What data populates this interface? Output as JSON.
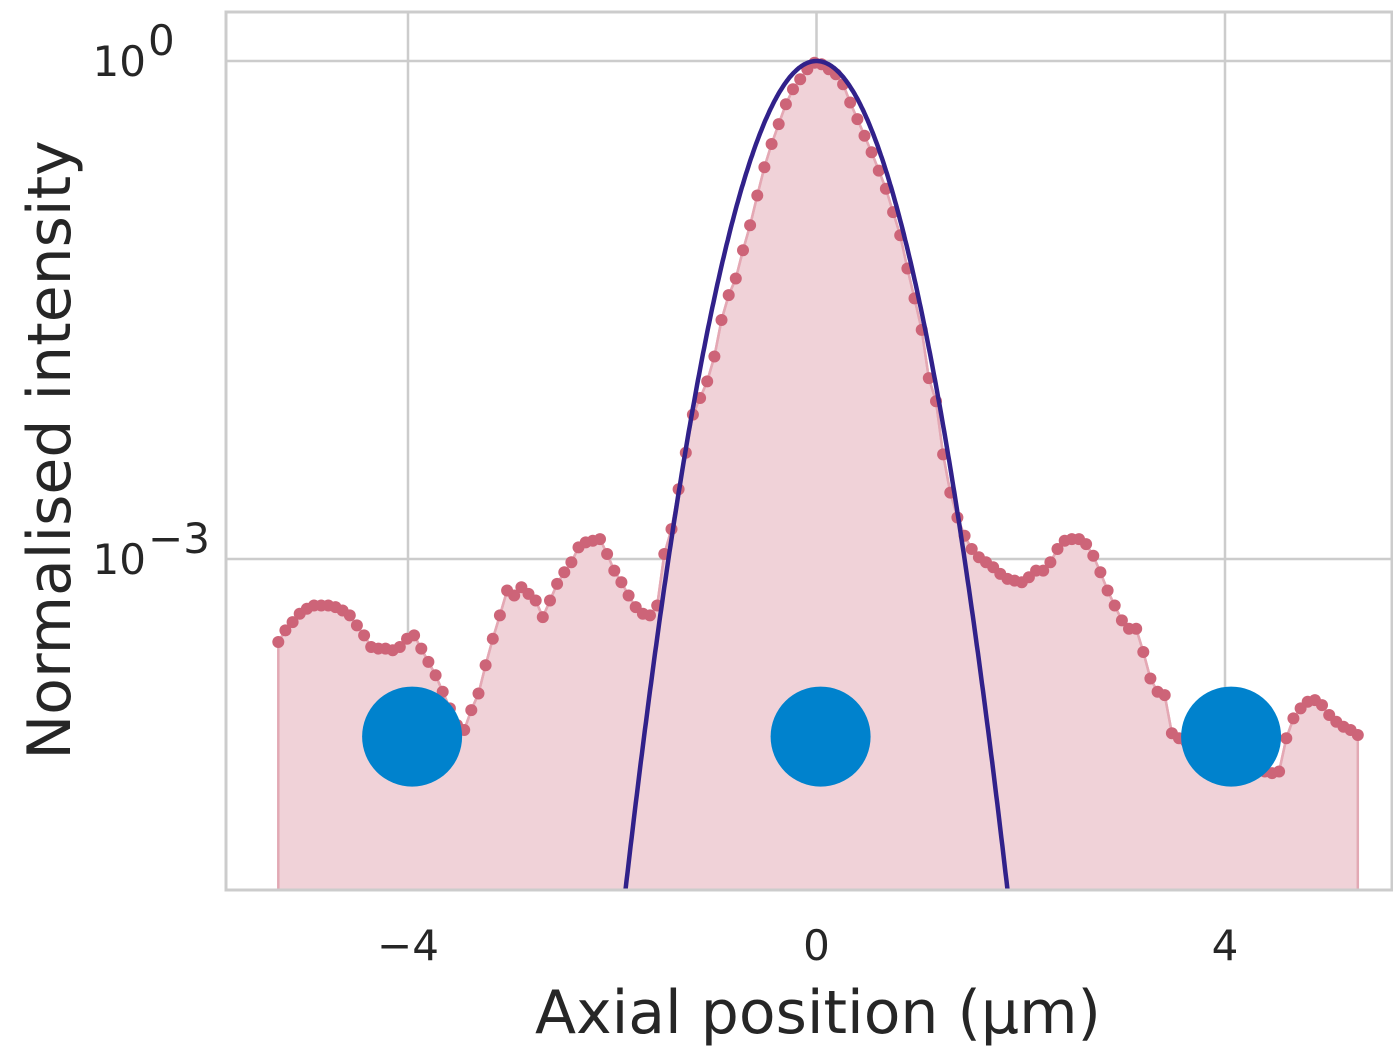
{
  "chart_data": {
    "type": "scatter",
    "title": "",
    "xlabel": "Axial position (µm)",
    "ylabel": "Normalised intensity",
    "xlim": [
      -5.9,
      5.6
    ],
    "ylim_log10": [
      -5.0,
      0.3
    ],
    "y_scale": "log",
    "grid": true,
    "x_ticks": [
      {
        "value": -4,
        "label": "−4"
      },
      {
        "value": 0,
        "label": "0"
      },
      {
        "value": 4,
        "label": "4"
      }
    ],
    "y_ticks": [
      {
        "log10": 0,
        "base": "10",
        "exp": "0"
      },
      {
        "log10": -3,
        "base": "10",
        "exp": "−3"
      }
    ],
    "colors": {
      "measured_points": "#cd6478",
      "measured_fill": "#f0d2d8",
      "fit_line": "#31218a",
      "markers": "#0082cd",
      "grid": "#cccccc",
      "text": "#262626"
    },
    "series": [
      {
        "kind": "measured",
        "log10_y": [
          [
            -5.27,
            -3.5
          ],
          [
            -5.2,
            -3.43
          ],
          [
            -5.13,
            -3.38
          ],
          [
            -5.06,
            -3.33
          ],
          [
            -4.99,
            -3.3
          ],
          [
            -4.92,
            -3.28
          ],
          [
            -4.85,
            -3.28
          ],
          [
            -4.78,
            -3.28
          ],
          [
            -4.71,
            -3.29
          ],
          [
            -4.64,
            -3.31
          ],
          [
            -4.57,
            -3.34
          ],
          [
            -4.5,
            -3.4
          ],
          [
            -4.43,
            -3.46
          ],
          [
            -4.36,
            -3.53
          ],
          [
            -4.29,
            -3.54
          ],
          [
            -4.22,
            -3.54
          ],
          [
            -4.15,
            -3.55
          ],
          [
            -4.08,
            -3.53
          ],
          [
            -4.01,
            -3.48
          ],
          [
            -3.94,
            -3.46
          ],
          [
            -3.87,
            -3.54
          ],
          [
            -3.8,
            -3.62
          ],
          [
            -3.73,
            -3.7
          ],
          [
            -3.66,
            -3.8
          ],
          [
            -3.59,
            -3.9
          ],
          [
            -3.52,
            -4.0
          ],
          [
            -3.45,
            -4.03
          ],
          [
            -3.38,
            -3.91
          ],
          [
            -3.31,
            -3.81
          ],
          [
            -3.24,
            -3.64
          ],
          [
            -3.17,
            -3.48
          ],
          [
            -3.1,
            -3.34
          ],
          [
            -3.03,
            -3.19
          ],
          [
            -2.96,
            -3.22
          ],
          [
            -2.89,
            -3.17
          ],
          [
            -2.82,
            -3.21
          ],
          [
            -2.75,
            -3.25
          ],
          [
            -2.68,
            -3.35
          ],
          [
            -2.61,
            -3.25
          ],
          [
            -2.54,
            -3.15
          ],
          [
            -2.47,
            -3.08
          ],
          [
            -2.4,
            -3.02
          ],
          [
            -2.33,
            -2.93
          ],
          [
            -2.26,
            -2.9
          ],
          [
            -2.19,
            -2.89
          ],
          [
            -2.12,
            -2.88
          ],
          [
            -2.05,
            -2.97
          ],
          [
            -1.98,
            -3.07
          ],
          [
            -1.91,
            -3.14
          ],
          [
            -1.84,
            -3.22
          ],
          [
            -1.77,
            -3.29
          ],
          [
            -1.7,
            -3.33
          ],
          [
            -1.63,
            -3.34
          ],
          [
            -1.56,
            -3.28
          ],
          [
            -1.49,
            -2.97
          ],
          [
            -1.42,
            -2.82
          ],
          [
            -1.35,
            -2.58
          ],
          [
            -1.28,
            -2.36
          ],
          [
            -1.21,
            -2.13
          ],
          [
            -1.14,
            -2.03
          ],
          [
            -1.07,
            -1.93
          ],
          [
            -1.0,
            -1.78
          ],
          [
            -0.93,
            -1.56
          ],
          [
            -0.86,
            -1.41
          ],
          [
            -0.79,
            -1.31
          ],
          [
            -0.72,
            -1.14
          ],
          [
            -0.65,
            -0.99
          ],
          [
            -0.58,
            -0.81
          ],
          [
            -0.51,
            -0.64
          ],
          [
            -0.44,
            -0.5
          ],
          [
            -0.37,
            -0.38
          ],
          [
            -0.3,
            -0.26
          ],
          [
            -0.23,
            -0.17
          ],
          [
            -0.16,
            -0.11
          ],
          [
            -0.09,
            -0.05
          ],
          [
            -0.02,
            -0.01
          ],
          [
            0.05,
            -0.02
          ],
          [
            0.12,
            -0.05
          ],
          [
            0.19,
            -0.08
          ],
          [
            0.26,
            -0.14
          ],
          [
            0.33,
            -0.25
          ],
          [
            0.4,
            -0.35
          ],
          [
            0.47,
            -0.45
          ],
          [
            0.54,
            -0.55
          ],
          [
            0.61,
            -0.66
          ],
          [
            0.68,
            -0.77
          ],
          [
            0.75,
            -0.91
          ],
          [
            0.82,
            -1.05
          ],
          [
            0.89,
            -1.25
          ],
          [
            0.96,
            -1.43
          ],
          [
            1.03,
            -1.62
          ],
          [
            1.1,
            -1.91
          ],
          [
            1.17,
            -2.05
          ],
          [
            1.24,
            -2.37
          ],
          [
            1.31,
            -2.6
          ],
          [
            1.38,
            -2.75
          ],
          [
            1.45,
            -2.86
          ],
          [
            1.52,
            -2.94
          ],
          [
            1.59,
            -2.99
          ],
          [
            1.66,
            -3.02
          ],
          [
            1.73,
            -3.05
          ],
          [
            1.8,
            -3.09
          ],
          [
            1.87,
            -3.12
          ],
          [
            1.94,
            -3.13
          ],
          [
            2.01,
            -3.14
          ],
          [
            2.08,
            -3.11
          ],
          [
            2.15,
            -3.07
          ],
          [
            2.22,
            -3.07
          ],
          [
            2.29,
            -3.02
          ],
          [
            2.36,
            -2.94
          ],
          [
            2.43,
            -2.89
          ],
          [
            2.5,
            -2.88
          ],
          [
            2.57,
            -2.88
          ],
          [
            2.64,
            -2.91
          ],
          [
            2.71,
            -2.98
          ],
          [
            2.78,
            -3.08
          ],
          [
            2.85,
            -3.19
          ],
          [
            2.92,
            -3.28
          ],
          [
            2.99,
            -3.37
          ],
          [
            3.06,
            -3.42
          ],
          [
            3.13,
            -3.42
          ],
          [
            3.2,
            -3.56
          ],
          [
            3.27,
            -3.72
          ],
          [
            3.34,
            -3.8
          ],
          [
            3.41,
            -3.82
          ],
          [
            3.48,
            -4.05
          ],
          [
            3.55,
            -4.08
          ],
          [
            3.62,
            -4.1
          ],
          [
            3.69,
            -4.11
          ],
          [
            3.76,
            -4.12
          ],
          [
            3.83,
            -4.12
          ],
          [
            3.9,
            -4.13
          ],
          [
            3.97,
            -4.15
          ],
          [
            4.04,
            -4.17
          ],
          [
            4.11,
            -4.2
          ],
          [
            4.18,
            -4.23
          ],
          [
            4.25,
            -4.25
          ],
          [
            4.32,
            -4.26
          ],
          [
            4.39,
            -4.28
          ],
          [
            4.46,
            -4.29
          ],
          [
            4.53,
            -4.28
          ],
          [
            4.6,
            -4.08
          ],
          [
            4.67,
            -3.96
          ],
          [
            4.74,
            -3.9
          ],
          [
            4.81,
            -3.86
          ],
          [
            4.88,
            -3.85
          ],
          [
            4.95,
            -3.88
          ],
          [
            5.02,
            -3.94
          ],
          [
            5.09,
            -3.98
          ],
          [
            5.16,
            -4.01
          ],
          [
            5.23,
            -4.03
          ],
          [
            5.3,
            -4.06
          ]
        ]
      },
      {
        "kind": "fit",
        "function": "gaussian",
        "center": 0.0,
        "sigma": 0.39
      }
    ],
    "markers": [
      {
        "x": -3.96,
        "log10_y": -4.07
      },
      {
        "x": 0.04,
        "log10_y": -4.07
      },
      {
        "x": 4.06,
        "log10_y": -4.07
      }
    ]
  }
}
